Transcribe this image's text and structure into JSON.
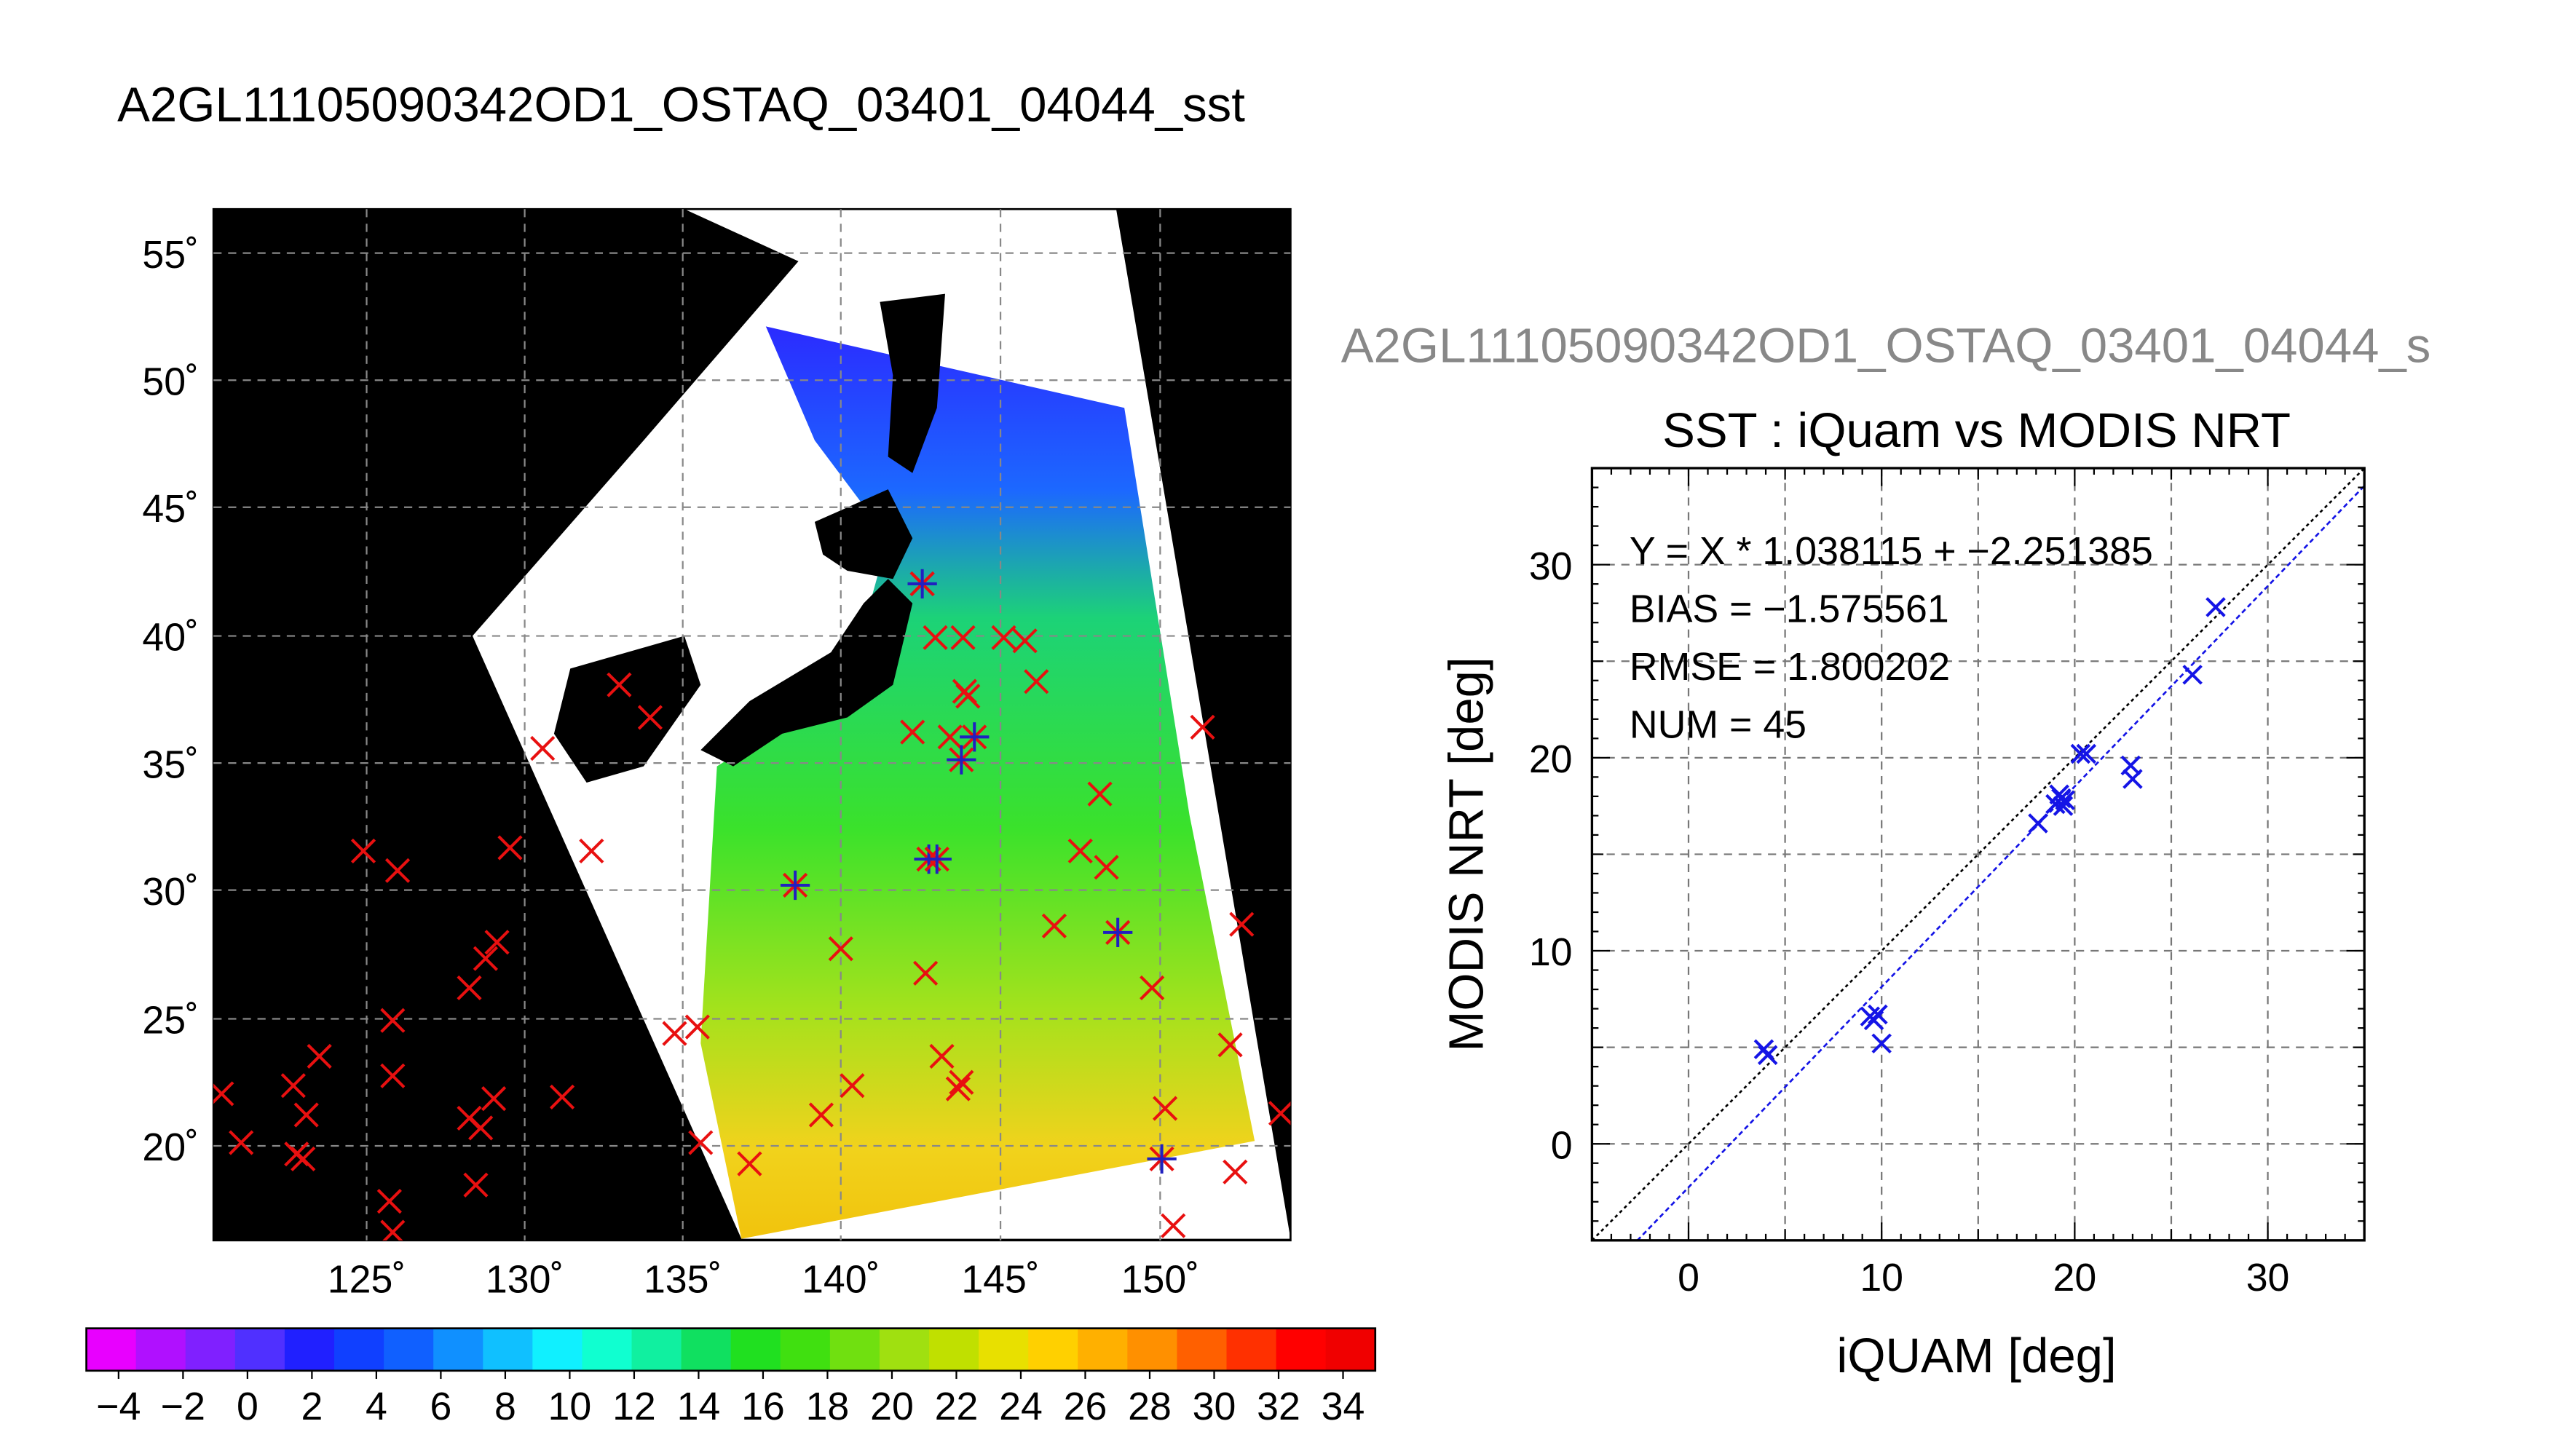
{
  "page_title": "A2GL11105090342OD1_OSTAQ_03401_04044_sst",
  "scatter_header": "A2GL11105090342OD1_OSTAQ_03401_04044_s",
  "map_panel": {
    "lat_ticks": [
      "55˚",
      "50˚",
      "45˚",
      "40˚",
      "35˚",
      "30˚",
      "25˚",
      "20˚"
    ],
    "lon_ticks": [
      "125˚",
      "130˚",
      "135˚",
      "140˚",
      "145˚",
      "150˚"
    ]
  },
  "colorbar": {
    "tick_labels": [
      "−4",
      "−2",
      "0",
      "2",
      "4",
      "6",
      "8",
      "10",
      "12",
      "14",
      "16",
      "18",
      "20",
      "22",
      "24",
      "26",
      "28",
      "30",
      "32",
      "34"
    ],
    "range": [
      -5,
      35
    ]
  },
  "chart_data": {
    "type": "scatter",
    "title": "SST : iQuam vs MODIS NRT",
    "xlabel": "iQUAM [deg]",
    "ylabel": "MODIS NRT [deg]",
    "xlim": [
      -5,
      35
    ],
    "ylim": [
      -5,
      35
    ],
    "x_ticks": [
      "0",
      "10",
      "20",
      "30"
    ],
    "y_ticks": [
      "0",
      "10",
      "20",
      "30"
    ],
    "grid": true,
    "annotations": [
      "Y = X * 1.038115 + −2.251385",
      "BIAS = −1.575561",
      "RMSE = 1.800202",
      "NUM = 45"
    ],
    "fit": {
      "slope": 1.038115,
      "intercept": -2.251385
    },
    "points": {
      "x": [
        3.9,
        4.1,
        9.4,
        9.6,
        9.8,
        10.0,
        18.1,
        19.0,
        19.2,
        19.3,
        19.4,
        19.5,
        20.3,
        20.6,
        22.9,
        23.0,
        26.1,
        27.3
      ],
      "y": [
        4.9,
        4.6,
        6.6,
        6.4,
        6.7,
        5.2,
        16.6,
        17.6,
        18.1,
        17.9,
        17.5,
        17.8,
        20.2,
        20.2,
        19.6,
        18.9,
        24.3,
        27.8
      ]
    },
    "colors": {
      "points": "#1414e6",
      "fit_line": "#1414e6",
      "identity_line": "#000000"
    }
  }
}
